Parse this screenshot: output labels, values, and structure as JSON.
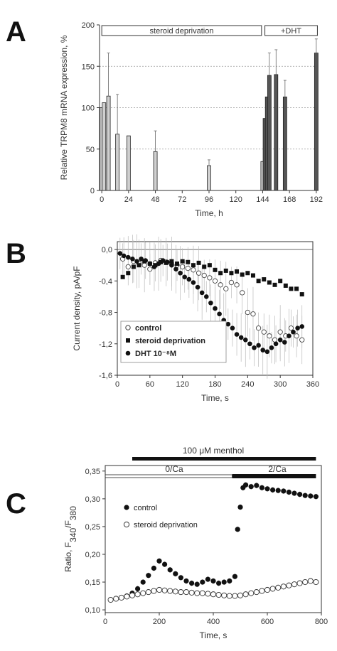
{
  "panels": {
    "a": {
      "letter": "A"
    },
    "b": {
      "letter": "B"
    },
    "c": {
      "letter": "C"
    }
  },
  "chart_data": [
    {
      "id": "A",
      "type": "bar",
      "ylabel": "Relative TRPM8 mRNA expression, %",
      "xlabel": "Time, h",
      "xlim": [
        -2,
        194
      ],
      "ylim": [
        0,
        200
      ],
      "xticks": [
        0,
        24,
        48,
        72,
        96,
        120,
        144,
        168,
        192
      ],
      "yticks": [
        0,
        50,
        100,
        150,
        200
      ],
      "grid_y": [
        50,
        100,
        150
      ],
      "annotations": [
        {
          "text": "steroid deprivation",
          "x_range": [
            0,
            143
          ]
        },
        {
          "text": "+DHT",
          "x_range": [
            146,
            193
          ]
        }
      ],
      "series": [
        {
          "group": "steroid deprivation",
          "color": "#d0d0d0",
          "x": [
            0,
            2,
            6,
            14,
            24,
            48,
            96,
            144
          ],
          "values": [
            100,
            106,
            114,
            68,
            66,
            47,
            30,
            35
          ],
          "errors": [
            0,
            0,
            52,
            48,
            0,
            25,
            7,
            0
          ]
        },
        {
          "group": "+DHT",
          "color": "#555555",
          "x": [
            146,
            148,
            150,
            156,
            164,
            192
          ],
          "values": [
            87,
            113,
            139,
            140,
            113,
            166
          ],
          "errors": [
            0,
            0,
            27,
            30,
            20,
            17
          ]
        }
      ]
    },
    {
      "id": "B",
      "type": "scatter",
      "ylabel": "Current density, pA/pF",
      "xlabel": "Time, s",
      "xlim": [
        0,
        360
      ],
      "ylim": [
        -1.6,
        0.1
      ],
      "xticks": [
        0,
        60,
        120,
        180,
        240,
        300,
        360
      ],
      "yticks": [
        0.0,
        -0.4,
        -0.8,
        -1.2,
        -1.6
      ],
      "ytick_labels": [
        "0,0",
        "-0,4",
        "-0,8",
        "-1,2",
        "-1,6"
      ],
      "legend": [
        {
          "name": "control",
          "marker": "open-circle"
        },
        {
          "name": "steroid deprivation",
          "marker": "filled-square"
        },
        {
          "name": "DHT 10⁻⁸M",
          "marker": "filled-circle"
        }
      ],
      "series": [
        {
          "name": "control",
          "x": [
            10,
            20,
            30,
            40,
            50,
            60,
            70,
            80,
            90,
            100,
            110,
            120,
            130,
            140,
            150,
            160,
            170,
            180,
            190,
            200,
            210,
            220,
            230,
            240,
            250,
            260,
            270,
            280,
            290,
            300,
            310,
            320,
            330,
            340
          ],
          "y": [
            -0.12,
            -0.22,
            -0.15,
            -0.18,
            -0.2,
            -0.25,
            -0.17,
            -0.14,
            -0.16,
            -0.18,
            -0.2,
            -0.22,
            -0.24,
            -0.26,
            -0.3,
            -0.33,
            -0.36,
            -0.4,
            -0.45,
            -0.5,
            -0.42,
            -0.45,
            -0.55,
            -0.8,
            -0.82,
            -1.0,
            -1.05,
            -1.1,
            -1.15,
            -1.05,
            -1.1,
            -1.0,
            -1.1,
            -1.15
          ]
        },
        {
          "name": "steroid deprivation",
          "x": [
            10,
            20,
            30,
            40,
            50,
            60,
            70,
            80,
            90,
            100,
            110,
            120,
            130,
            140,
            150,
            160,
            170,
            180,
            190,
            200,
            210,
            220,
            230,
            240,
            250,
            260,
            270,
            280,
            290,
            300,
            310,
            320,
            330,
            340
          ],
          "y": [
            -0.35,
            -0.3,
            -0.22,
            -0.2,
            -0.15,
            -0.18,
            -0.2,
            -0.16,
            -0.17,
            -0.15,
            -0.18,
            -0.15,
            -0.16,
            -0.2,
            -0.17,
            -0.22,
            -0.2,
            -0.26,
            -0.3,
            -0.27,
            -0.3,
            -0.28,
            -0.32,
            -0.3,
            -0.33,
            -0.4,
            -0.38,
            -0.42,
            -0.45,
            -0.4,
            -0.46,
            -0.5,
            -0.5,
            -0.57
          ]
        },
        {
          "name": "DHT 10⁻⁸M",
          "x": [
            5,
            12,
            20,
            28,
            36,
            44,
            52,
            60,
            68,
            76,
            84,
            92,
            100,
            108,
            116,
            124,
            132,
            140,
            148,
            156,
            164,
            172,
            180,
            188,
            196,
            204,
            212,
            220,
            228,
            236,
            244,
            252,
            260,
            268,
            276,
            284,
            292,
            300,
            308,
            316,
            324,
            332,
            340
          ],
          "y": [
            -0.05,
            -0.08,
            -0.1,
            -0.12,
            -0.15,
            -0.12,
            -0.14,
            -0.18,
            -0.22,
            -0.18,
            -0.14,
            -0.16,
            -0.2,
            -0.25,
            -0.3,
            -0.35,
            -0.38,
            -0.42,
            -0.48,
            -0.55,
            -0.6,
            -0.68,
            -0.75,
            -0.82,
            -0.9,
            -0.95,
            -1.0,
            -1.08,
            -1.12,
            -1.15,
            -1.2,
            -1.25,
            -1.22,
            -1.28,
            -1.3,
            -1.25,
            -1.2,
            -1.15,
            -1.18,
            -1.1,
            -1.05,
            -1.0,
            -0.98
          ]
        }
      ]
    },
    {
      "id": "C",
      "type": "scatter",
      "ylabel": "Ratio, F340/F380",
      "ylabel_parts": {
        "prefix": "Ratio, F",
        "sub1": "340",
        "slash": "/F",
        "sub2": "380"
      },
      "xlabel": "Time, s",
      "xlim": [
        0,
        800
      ],
      "ylim": [
        0.095,
        0.36
      ],
      "xticks": [
        0,
        200,
        400,
        600,
        800
      ],
      "yticks": [
        0.1,
        0.15,
        0.2,
        0.25,
        0.3,
        0.35
      ],
      "ytick_labels": [
        "0,10",
        "0,15",
        "0,20",
        "0,25",
        "0,30",
        "0,35"
      ],
      "annotations": [
        {
          "text": "100 μM menthol",
          "x_range": [
            100,
            780
          ]
        },
        {
          "text": "0/Ca",
          "x_range": [
            0,
            470
          ]
        },
        {
          "text": "2/Ca",
          "x_range": [
            470,
            780
          ]
        }
      ],
      "legend": [
        {
          "name": "control",
          "marker": "filled-circle"
        },
        {
          "name": "steroid deprivation",
          "marker": "open-circle"
        }
      ],
      "series": [
        {
          "name": "control",
          "x": [
            20,
            40,
            60,
            80,
            100,
            120,
            140,
            160,
            180,
            200,
            220,
            240,
            260,
            280,
            300,
            320,
            340,
            360,
            380,
            400,
            420,
            440,
            460,
            480,
            490,
            500,
            510,
            520,
            540,
            560,
            580,
            600,
            620,
            640,
            660,
            680,
            700,
            720,
            740,
            760,
            780
          ],
          "y": [
            0.118,
            0.12,
            0.122,
            0.125,
            0.13,
            0.138,
            0.15,
            0.162,
            0.175,
            0.188,
            0.182,
            0.172,
            0.165,
            0.158,
            0.152,
            0.148,
            0.146,
            0.15,
            0.155,
            0.152,
            0.148,
            0.15,
            0.152,
            0.16,
            0.245,
            0.285,
            0.32,
            0.325,
            0.322,
            0.324,
            0.32,
            0.318,
            0.316,
            0.315,
            0.314,
            0.312,
            0.31,
            0.308,
            0.306,
            0.305,
            0.304
          ]
        },
        {
          "name": "steroid deprivation",
          "x": [
            20,
            40,
            60,
            80,
            100,
            120,
            140,
            160,
            180,
            200,
            220,
            240,
            260,
            280,
            300,
            320,
            340,
            360,
            380,
            400,
            420,
            440,
            460,
            480,
            500,
            520,
            540,
            560,
            580,
            600,
            620,
            640,
            660,
            680,
            700,
            720,
            740,
            760,
            780
          ],
          "y": [
            0.118,
            0.12,
            0.122,
            0.124,
            0.126,
            0.128,
            0.13,
            0.132,
            0.134,
            0.136,
            0.135,
            0.134,
            0.133,
            0.132,
            0.132,
            0.131,
            0.13,
            0.13,
            0.129,
            0.128,
            0.127,
            0.126,
            0.125,
            0.125,
            0.126,
            0.128,
            0.13,
            0.132,
            0.134,
            0.136,
            0.138,
            0.14,
            0.142,
            0.144,
            0.146,
            0.148,
            0.15,
            0.152,
            0.15
          ]
        }
      ]
    }
  ]
}
